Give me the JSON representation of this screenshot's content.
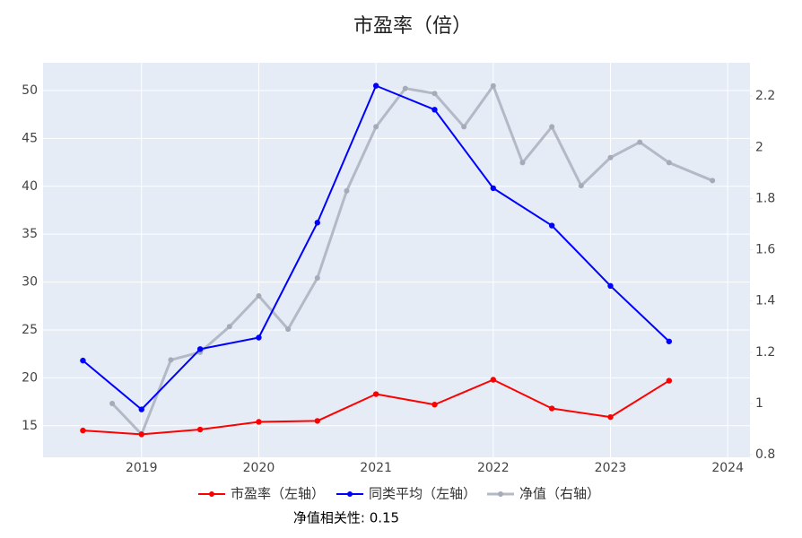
{
  "chart_data": {
    "type": "line",
    "title": "市盈率（倍）",
    "xlim": [
      2018.16,
      2024.19
    ],
    "xticks": [
      2019,
      2020,
      2021,
      2022,
      2023,
      2024
    ],
    "ylim": [
      11.7,
      52.9
    ],
    "yticks": [
      15,
      20,
      25,
      30,
      35,
      40,
      45,
      50
    ],
    "y2lim": [
      0.79,
      2.33
    ],
    "y2ticks": [
      0.8,
      1,
      1.2,
      1.4,
      1.6,
      1.8,
      2,
      2.2
    ],
    "grid": true,
    "legend": "bottom",
    "series": [
      {
        "name": "市盈率（左轴）",
        "color": "#ff0000",
        "axis": "y",
        "x": [
          2018.5,
          2019,
          2019.5,
          2020,
          2020.5,
          2021,
          2021.5,
          2022,
          2022.5,
          2023,
          2023.5
        ],
        "values": [
          14.5,
          14.1,
          14.6,
          15.4,
          15.5,
          18.3,
          17.2,
          19.8,
          16.8,
          15.9,
          19.7
        ]
      },
      {
        "name": "同类平均（左轴）",
        "color": "#0000ff",
        "axis": "y",
        "x": [
          2018.5,
          2019,
          2019.5,
          2020,
          2020.5,
          2021,
          2021.5,
          2022,
          2022.5,
          2023,
          2023.5
        ],
        "values": [
          21.8,
          16.7,
          23.0,
          24.2,
          36.2,
          50.5,
          48.0,
          39.8,
          35.9,
          29.6,
          23.8
        ]
      },
      {
        "name": "净值（右轴）",
        "color": "#b3b9c6",
        "axis": "y2",
        "x": [
          2018.75,
          2019,
          2019.25,
          2019.5,
          2019.75,
          2020,
          2020.25,
          2020.5,
          2020.75,
          2021,
          2021.25,
          2021.5,
          2021.75,
          2022,
          2022.25,
          2022.5,
          2022.75,
          2023,
          2023.25,
          2023.5,
          2023.87
        ],
        "values": [
          1.0,
          0.88,
          1.17,
          1.2,
          1.3,
          1.42,
          1.29,
          1.49,
          1.83,
          2.08,
          2.23,
          2.21,
          2.08,
          2.24,
          1.94,
          2.08,
          1.85,
          1.96,
          2.02,
          1.94,
          1.87
        ]
      }
    ],
    "annotation": "净值相关性: 0.15"
  }
}
